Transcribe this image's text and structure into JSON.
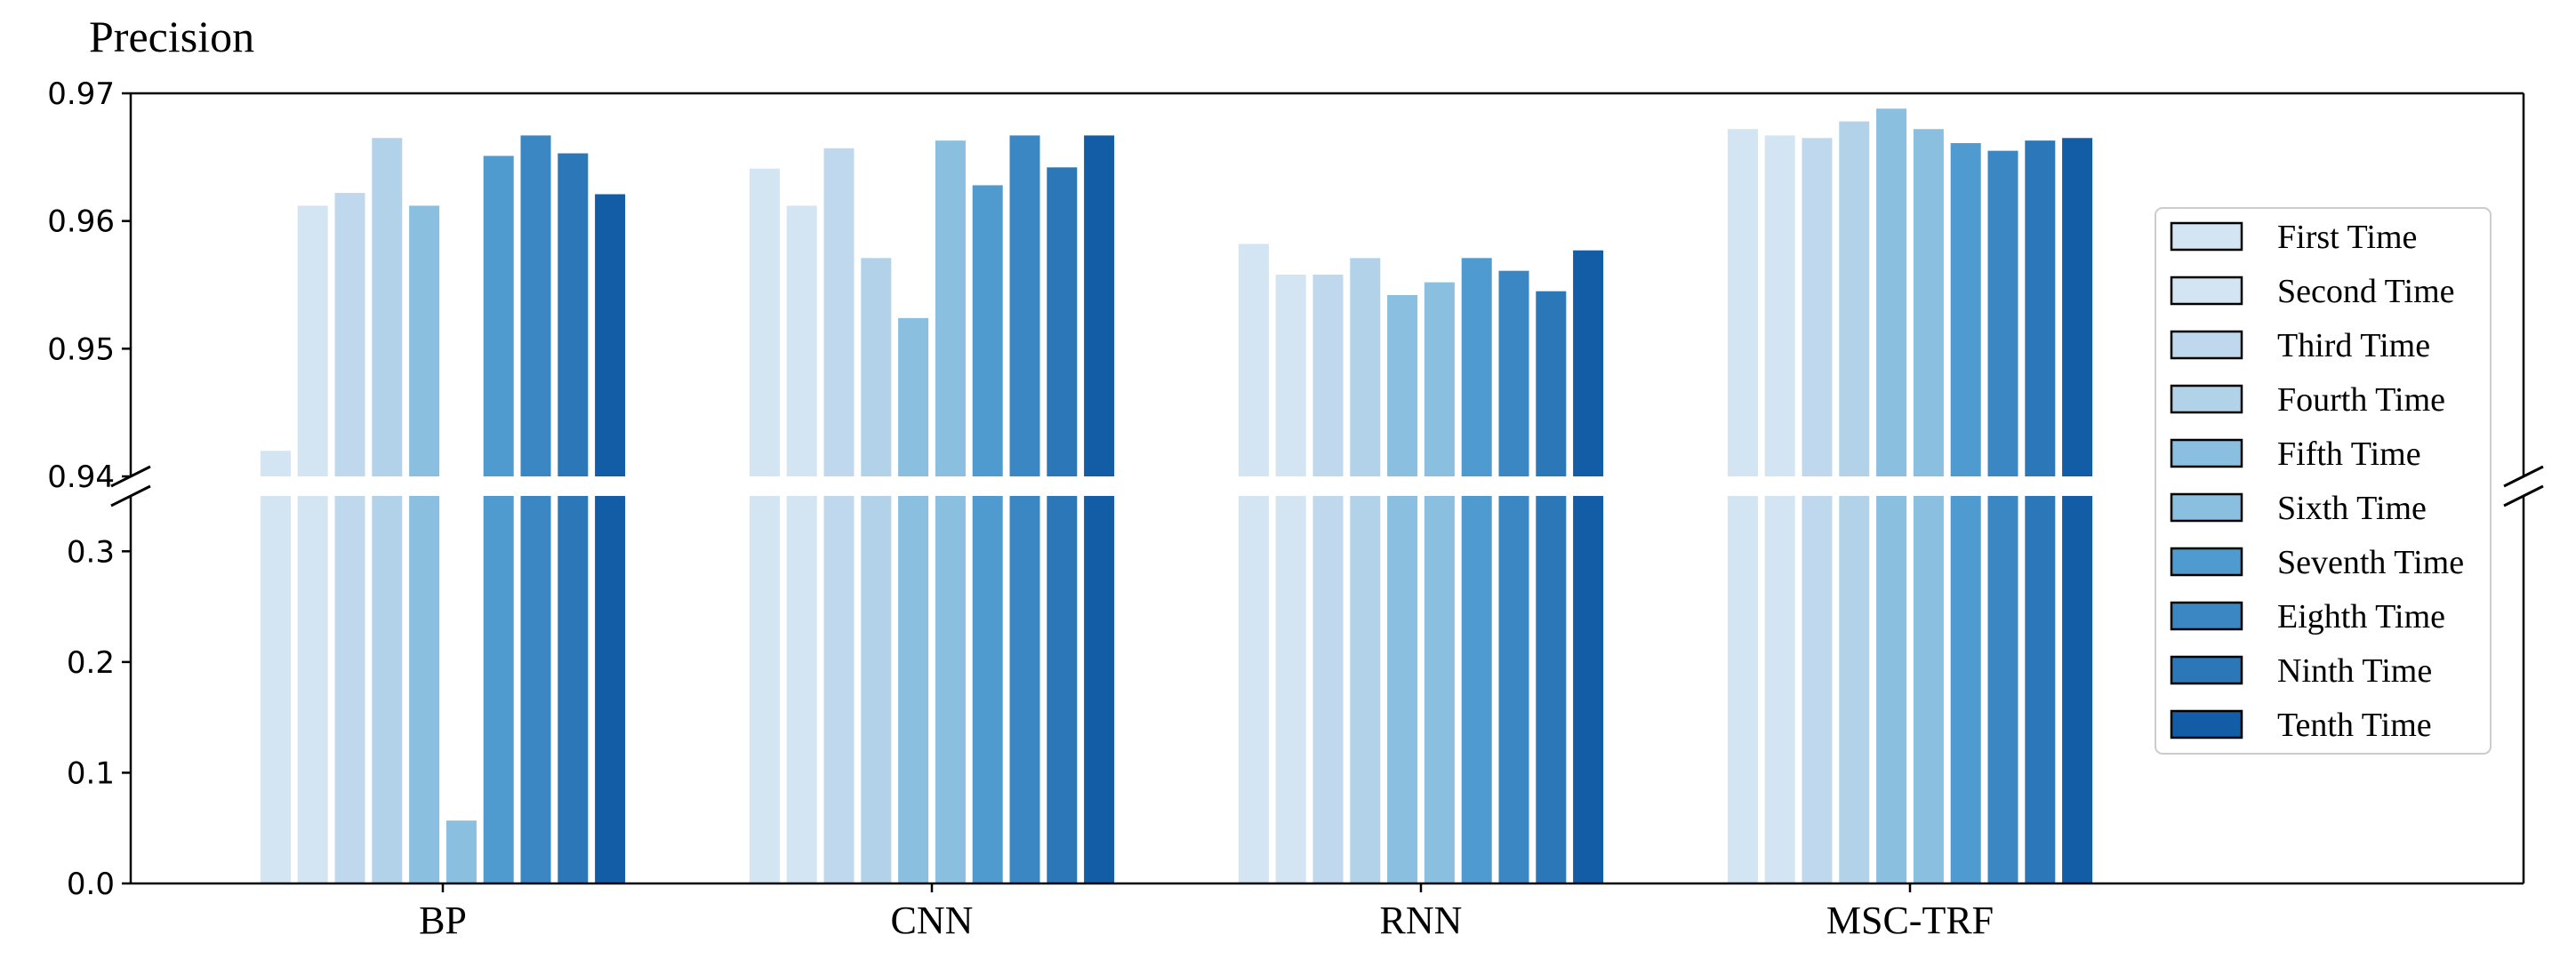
{
  "chart_data": {
    "type": "bar",
    "ylabel": "Precision",
    "xlabel": "",
    "categories": [
      "BP",
      "CNN",
      "RNN",
      "MSC-TRF"
    ],
    "series": [
      {
        "name": "First Time",
        "color": "#d3e4f3",
        "values": [
          0.942,
          0.9641,
          0.9582,
          0.9672
        ]
      },
      {
        "name": "Second Time",
        "color": "#d3e4f3",
        "values": [
          0.9612,
          0.9612,
          0.9558,
          0.9667
        ]
      },
      {
        "name": "Third Time",
        "color": "#c0d8ed",
        "values": [
          0.9622,
          0.9657,
          0.9558,
          0.9665
        ]
      },
      {
        "name": "Fourth Time",
        "color": "#b1d2e8",
        "values": [
          0.9665,
          0.9571,
          0.9571,
          0.9678
        ]
      },
      {
        "name": "Fifth Time",
        "color": "#8bbfe0",
        "values": [
          0.9612,
          0.9524,
          0.9542,
          0.9688
        ]
      },
      {
        "name": "Sixth Time",
        "color": "#8bbfe0",
        "values": [
          0.0568,
          0.9663,
          0.9552,
          0.9672
        ]
      },
      {
        "name": "Seventh Time",
        "color": "#4f9ace",
        "values": [
          0.9651,
          0.9628,
          0.9571,
          0.9661
        ]
      },
      {
        "name": "Eighth Time",
        "color": "#3a87c3",
        "values": [
          0.9667,
          0.9667,
          0.9561,
          0.9655
        ]
      },
      {
        "name": "Ninth Time",
        "color": "#2c77b8",
        "values": [
          0.9653,
          0.9642,
          0.9545,
          0.9663
        ]
      },
      {
        "name": "Tenth Time",
        "color": "#125da6",
        "values": [
          0.9621,
          0.9667,
          0.9577,
          0.9665
        ]
      }
    ],
    "axis_break": true,
    "upper_ylim": [
      0.94,
      0.97
    ],
    "upper_yticks": [
      0.94,
      0.95,
      0.96,
      0.97
    ],
    "upper_ytick_labels": [
      "0.94",
      "0.95",
      "0.96",
      "0.97"
    ],
    "lower_ylim": [
      0.0,
      0.35
    ],
    "lower_yticks": [
      0.0,
      0.1,
      0.2,
      0.3
    ],
    "lower_ytick_labels": [
      "0.0",
      "0.1",
      "0.2",
      "0.3"
    ],
    "grid": false,
    "legend_position": "right"
  }
}
